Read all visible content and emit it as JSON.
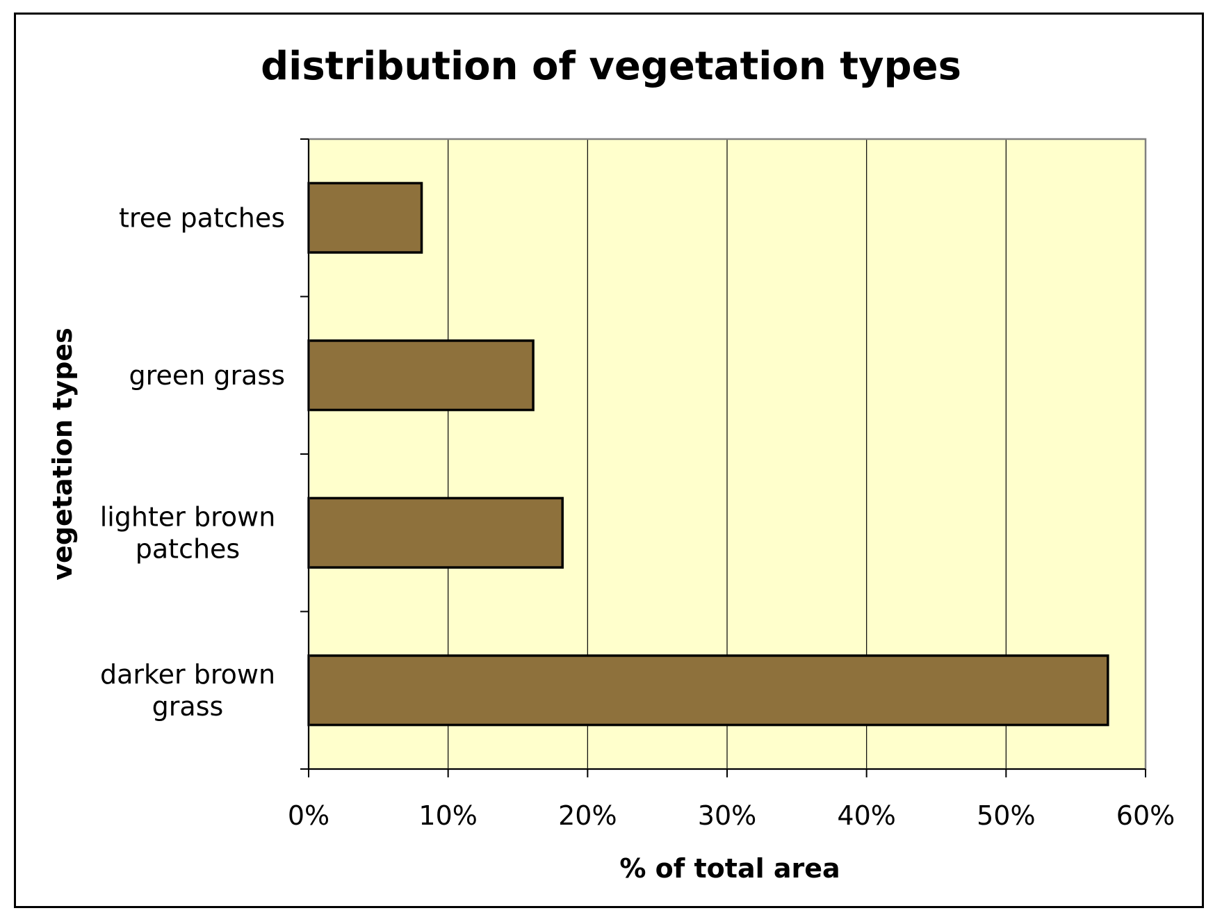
{
  "chart_data": {
    "type": "bar",
    "orientation": "horizontal",
    "title": "distribution of vegetation types",
    "xlabel": "% of total area",
    "ylabel": "vegetation types",
    "categories": [
      "tree patches",
      "green grass",
      "lighter brown patches",
      "darker brown grass"
    ],
    "category_lines": [
      [
        "tree patches"
      ],
      [
        "green grass"
      ],
      [
        "lighter brown",
        "patches"
      ],
      [
        "darker brown",
        "grass"
      ]
    ],
    "values": [
      8.1,
      16.1,
      18.2,
      57.3
    ],
    "xlim": [
      0,
      60
    ],
    "xticks": [
      0,
      10,
      20,
      30,
      40,
      50,
      60
    ],
    "xtick_labels": [
      "0%",
      "10%",
      "20%",
      "30%",
      "40%",
      "50%",
      "60%"
    ],
    "grid": "vertical",
    "legend": "none",
    "colors": {
      "bar_fill": "#8E713C",
      "bar_stroke": "#000000",
      "plot_background": "#FFFFCC",
      "gridline": "#000000",
      "plot_border": "#808080"
    }
  }
}
